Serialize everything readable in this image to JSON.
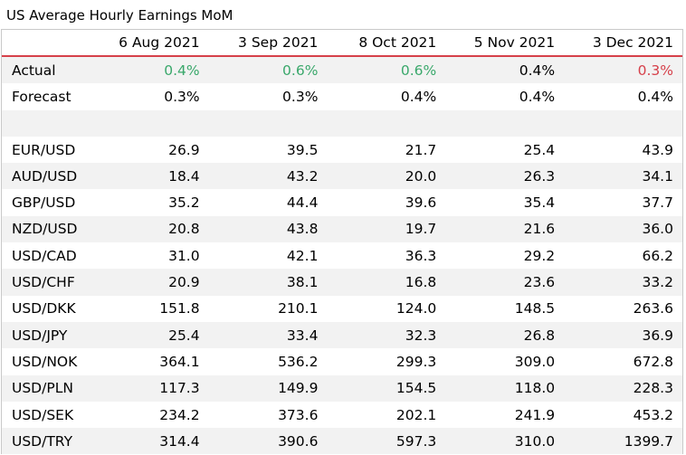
{
  "title": "US Average Hourly Earnings MoM",
  "colors": {
    "positive": "#3aa86b",
    "negative": "#d6404a",
    "header_rule": "#d6404a",
    "shade": "#f2f2f2"
  },
  "chart_data": {
    "type": "table",
    "title": "US Average Hourly Earnings MoM",
    "columns": [
      "6 Aug 2021",
      "3 Sep 2021",
      "8 Oct 2021",
      "5 Nov 2021",
      "3 Dec 2021"
    ],
    "actual": {
      "label": "Actual",
      "values": [
        "0.4%",
        "0.6%",
        "0.6%",
        "0.4%",
        "0.3%"
      ],
      "colors": [
        "pos",
        "pos",
        "pos",
        "neu",
        "neg"
      ]
    },
    "forecast": {
      "label": "Forecast",
      "values": [
        "0.3%",
        "0.3%",
        "0.4%",
        "0.4%",
        "0.4%"
      ]
    },
    "rows": [
      {
        "label": "EUR/USD",
        "values": [
          "26.9",
          "39.5",
          "21.7",
          "25.4",
          "43.9"
        ]
      },
      {
        "label": "AUD/USD",
        "values": [
          "18.4",
          "43.2",
          "20.0",
          "26.3",
          "34.1"
        ]
      },
      {
        "label": "GBP/USD",
        "values": [
          "35.2",
          "44.4",
          "39.6",
          "35.4",
          "37.7"
        ]
      },
      {
        "label": "NZD/USD",
        "values": [
          "20.8",
          "43.8",
          "19.7",
          "21.6",
          "36.0"
        ]
      },
      {
        "label": "USD/CAD",
        "values": [
          "31.0",
          "42.1",
          "36.3",
          "29.2",
          "66.2"
        ]
      },
      {
        "label": "USD/CHF",
        "values": [
          "20.9",
          "38.1",
          "16.8",
          "23.6",
          "33.2"
        ]
      },
      {
        "label": "USD/DKK",
        "values": [
          "151.8",
          "210.1",
          "124.0",
          "148.5",
          "263.6"
        ]
      },
      {
        "label": "USD/JPY",
        "values": [
          "25.4",
          "33.4",
          "32.3",
          "26.8",
          "36.9"
        ]
      },
      {
        "label": "USD/NOK",
        "values": [
          "364.1",
          "536.2",
          "299.3",
          "309.0",
          "672.8"
        ]
      },
      {
        "label": "USD/PLN",
        "values": [
          "117.3",
          "149.9",
          "154.5",
          "118.0",
          "228.3"
        ]
      },
      {
        "label": "USD/SEK",
        "values": [
          "234.2",
          "373.6",
          "202.1",
          "241.9",
          "453.2"
        ]
      },
      {
        "label": "USD/TRY",
        "values": [
          "314.4",
          "390.6",
          "597.3",
          "310.0",
          "1399.7"
        ]
      }
    ]
  }
}
